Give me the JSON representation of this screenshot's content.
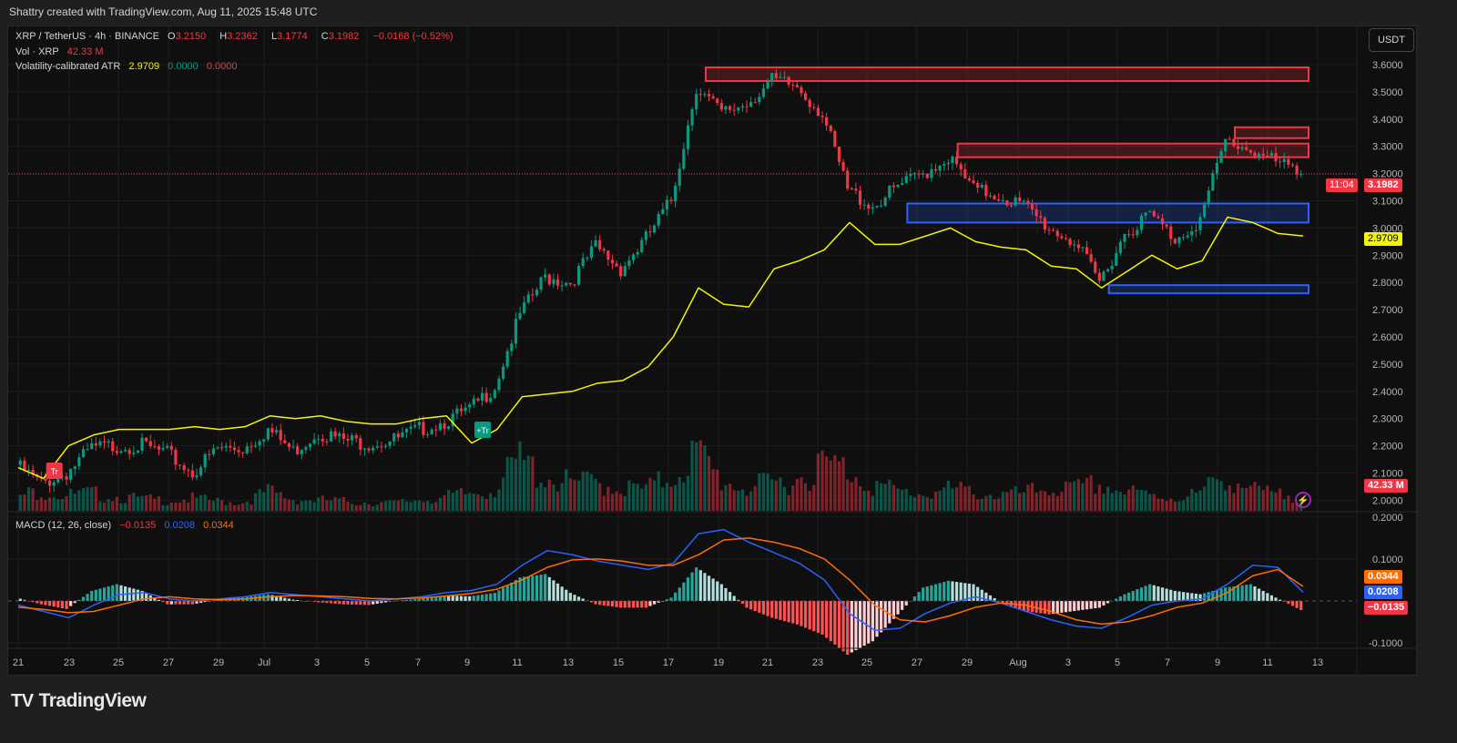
{
  "credit": "Shattry created with TradingView.com, Aug 11, 2025 15:48 UTC",
  "legend": {
    "symbol": "XRP / TetherUS · 4h · BINANCE",
    "open_label": "O",
    "open": "3.2150",
    "high_label": "H",
    "high": "3.2362",
    "low_label": "L",
    "low": "3.1774",
    "close_label": "C",
    "close": "3.1982",
    "change": "−0.0168 (−0.52%)",
    "vol_label": "Vol · XRP",
    "vol": "42.33 M",
    "atr_label": "Volatility-calibrated ATR",
    "atr": "2.9709",
    "atr_v2": "0.0000",
    "atr_v3": "0.0000",
    "macd_label": "MACD (12, 26, close)",
    "macd_hist": "−0.0135",
    "macd": "0.0208",
    "macd_signal": "0.0344"
  },
  "currency_button": "USDT",
  "price_tag": {
    "price": "3.1982",
    "countdown": "11:04"
  },
  "atr_tag": "2.9709",
  "vol_tag": "42.33 M",
  "macd_tags": {
    "signal": "0.0344",
    "macd": "0.0208",
    "hist": "−0.0135"
  },
  "brand": "TradingView",
  "colors": {
    "up": "#089981",
    "down": "#f23645",
    "atr": "#f5f500",
    "macd": "#2962ff",
    "signal": "#ff6d00",
    "background": "#0f0f0f"
  },
  "chart_data": {
    "type": "candlestick",
    "timeframe": "4h",
    "price_axis": {
      "ylim": [
        2.0,
        3.6
      ],
      "ticks": [
        "3.6000",
        "3.5000",
        "3.4000",
        "3.3000",
        "3.2000",
        "3.1000",
        "3.0000",
        "2.9000",
        "2.8000",
        "2.7000",
        "2.6000",
        "2.5000",
        "2.4000",
        "2.3000",
        "2.2000",
        "2.1000",
        "2.0000"
      ]
    },
    "macd_axis": {
      "ylim": [
        -0.1,
        0.2
      ],
      "ticks": [
        "0.2000",
        "0.1000",
        "-0.1000"
      ]
    },
    "x_ticks": [
      "21",
      "23",
      "25",
      "27",
      "29",
      "Jul",
      "3",
      "5",
      "7",
      "9",
      "11",
      "13",
      "15",
      "17",
      "19",
      "21",
      "23",
      "25",
      "27",
      "29",
      "Aug",
      "3",
      "5",
      "7",
      "9",
      "11",
      "13"
    ],
    "dates": [
      "Jun 21",
      "Jun 22",
      "Jun 23",
      "Jun 24",
      "Jun 25",
      "Jun 26",
      "Jun 27",
      "Jun 28",
      "Jun 29",
      "Jun 30",
      "Jul 1",
      "Jul 2",
      "Jul 3",
      "Jul 4",
      "Jul 5",
      "Jul 6",
      "Jul 7",
      "Jul 8",
      "Jul 9",
      "Jul 10",
      "Jul 11",
      "Jul 12",
      "Jul 13",
      "Jul 14",
      "Jul 15",
      "Jul 16",
      "Jul 17",
      "Jul 18",
      "Jul 19",
      "Jul 20",
      "Jul 21",
      "Jul 22",
      "Jul 23",
      "Jul 24",
      "Jul 25",
      "Jul 26",
      "Jul 27",
      "Jul 28",
      "Jul 29",
      "Jul 30",
      "Jul 31",
      "Aug 1",
      "Aug 2",
      "Aug 3",
      "Aug 4",
      "Aug 5",
      "Aug 6",
      "Aug 7",
      "Aug 8",
      "Aug 9",
      "Aug 10",
      "Aug 11"
    ],
    "close": [
      2.13,
      2.06,
      2.1,
      2.19,
      2.2,
      2.2,
      2.17,
      2.1,
      2.19,
      2.19,
      2.26,
      2.18,
      2.25,
      2.22,
      2.21,
      2.22,
      2.26,
      2.29,
      2.33,
      2.42,
      2.68,
      2.82,
      2.8,
      2.93,
      2.85,
      2.96,
      3.1,
      3.52,
      3.42,
      3.46,
      3.54,
      3.52,
      3.42,
      3.14,
      3.08,
      3.15,
      3.2,
      3.26,
      3.14,
      3.12,
      3.08,
      3.0,
      2.95,
      2.8,
      2.98,
      3.05,
      2.96,
      3.03,
      3.32,
      3.29,
      3.24,
      3.1982
    ],
    "atr": [
      2.12,
      2.08,
      2.2,
      2.24,
      2.26,
      2.26,
      2.26,
      2.27,
      2.26,
      2.27,
      2.31,
      2.3,
      2.31,
      2.29,
      2.28,
      2.28,
      2.3,
      2.31,
      2.21,
      2.26,
      2.38,
      2.39,
      2.4,
      2.43,
      2.44,
      2.49,
      2.6,
      2.78,
      2.72,
      2.71,
      2.85,
      2.88,
      2.92,
      3.02,
      2.94,
      2.94,
      2.97,
      3.0,
      2.95,
      2.93,
      2.92,
      2.86,
      2.85,
      2.78,
      2.84,
      2.9,
      2.85,
      2.88,
      3.04,
      3.02,
      2.98,
      2.9709
    ],
    "volume_m": [
      35,
      55,
      40,
      45,
      38,
      30,
      28,
      32,
      25,
      22,
      50,
      30,
      28,
      25,
      22,
      20,
      30,
      35,
      45,
      60,
      130,
      90,
      70,
      75,
      60,
      55,
      90,
      150,
      80,
      60,
      70,
      85,
      120,
      110,
      70,
      50,
      45,
      55,
      50,
      40,
      45,
      60,
      55,
      70,
      50,
      40,
      35,
      45,
      95,
      55,
      40,
      42.33
    ],
    "macd": [
      -0.01,
      -0.025,
      -0.04,
      -0.01,
      0.015,
      0.02,
      0.005,
      0.0,
      0.005,
      0.01,
      0.02,
      0.015,
      0.01,
      0.005,
      0.0,
      0.005,
      0.01,
      0.02,
      0.025,
      0.04,
      0.085,
      0.12,
      0.11,
      0.095,
      0.085,
      0.075,
      0.09,
      0.16,
      0.17,
      0.14,
      0.115,
      0.09,
      0.05,
      -0.03,
      -0.07,
      -0.065,
      -0.03,
      -0.005,
      0.01,
      -0.005,
      -0.025,
      -0.045,
      -0.06,
      -0.065,
      -0.04,
      -0.01,
      0.0,
      0.005,
      0.04,
      0.085,
      0.08,
      0.0208
    ],
    "signal": [
      -0.015,
      -0.02,
      -0.028,
      -0.025,
      -0.01,
      0.005,
      0.01,
      0.005,
      0.003,
      0.005,
      0.01,
      0.013,
      0.012,
      0.01,
      0.006,
      0.005,
      0.007,
      0.012,
      0.018,
      0.028,
      0.05,
      0.08,
      0.098,
      0.1,
      0.095,
      0.085,
      0.085,
      0.11,
      0.145,
      0.15,
      0.14,
      0.125,
      0.1,
      0.05,
      -0.01,
      -0.045,
      -0.05,
      -0.035,
      -0.015,
      -0.005,
      -0.01,
      -0.025,
      -0.045,
      -0.055,
      -0.05,
      -0.035,
      -0.015,
      -0.005,
      0.02,
      0.06,
      0.075,
      0.0344
    ],
    "zones": [
      {
        "type": "supply",
        "from": "Jul 18",
        "low": 3.54,
        "high": 3.59,
        "color": "#f23645"
      },
      {
        "type": "supply",
        "from": "Jul 28",
        "low": 3.26,
        "high": 3.31,
        "color": "#f23645"
      },
      {
        "type": "supply",
        "from": "Aug 8",
        "low": 3.33,
        "high": 3.37,
        "color": "#f23645"
      },
      {
        "type": "demand",
        "from": "Jul 26",
        "low": 3.02,
        "high": 3.09,
        "color": "#2962ff"
      },
      {
        "type": "demand",
        "from": "Aug 3",
        "low": 2.76,
        "high": 2.79,
        "color": "#2962ff"
      }
    ],
    "signals": [
      {
        "label": "Tr",
        "date": "Jun 22",
        "color": "#f23645"
      },
      {
        "label": "+Tr",
        "date": "Jul 9",
        "color": "#089981"
      }
    ]
  }
}
